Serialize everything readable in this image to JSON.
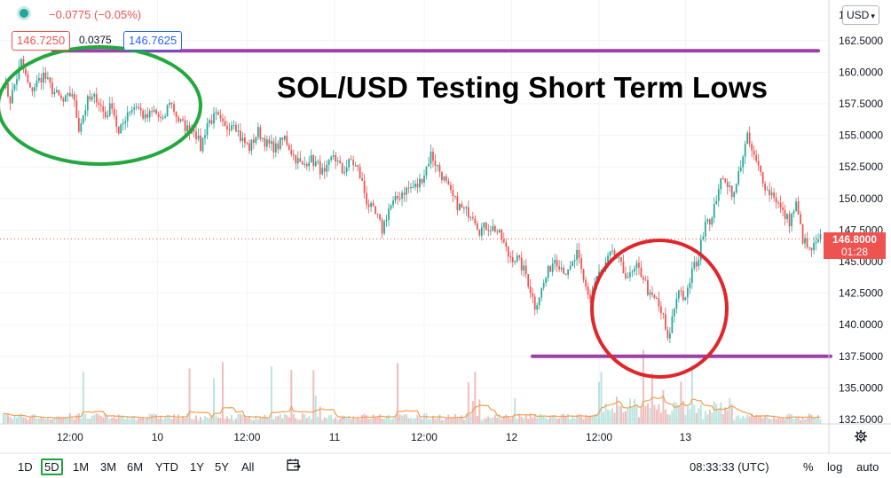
{
  "header": {
    "change": "−0.0775 (−0.05%)",
    "bid": "146.7250",
    "spread": "0.0375",
    "ask": "146.7625"
  },
  "headline": "SOL/USD Testing Short Term Lows",
  "price_scale": {
    "currency": "USD",
    "top_partial_label": "1",
    "current_price": "146.8000",
    "countdown": "01:28"
  },
  "bottom_toolbar": {
    "timeframes": [
      "1D",
      "5D",
      "1M",
      "3M",
      "6M",
      "YTD",
      "1Y",
      "5Y",
      "All"
    ],
    "active_timeframe": "5D",
    "clock": "08:33:33 (UTC)",
    "percent": "%",
    "log": "log",
    "auto": "auto"
  },
  "icons": {
    "settings": "gear-icon",
    "date-range": "calendar-range-icon",
    "status": "live-dot-icon"
  },
  "colors": {
    "up": "#26a69a",
    "down": "#ef5350",
    "volume": "#e8a2a0",
    "volume_ma": "#f0a050",
    "resistance_line": "#9c3fa8",
    "support_line": "#9c3fa8",
    "green_circle": "#22a83f",
    "red_circle": "#e0262b"
  },
  "chart_data": {
    "type": "candlestick",
    "title": "SOL/USD Testing Short Term Lows",
    "xlabel": "",
    "ylabel": "",
    "x_ticks": [
      "12:00",
      "10",
      "12:00",
      "11",
      "12:00",
      "12",
      "12:00",
      "13"
    ],
    "y_ticks": [
      "132.5000",
      "135.0000",
      "137.5000",
      "140.0000",
      "142.5000",
      "145.0000",
      "147.5000",
      "150.0000",
      "152.5000",
      "155.0000",
      "157.5000",
      "160.0000",
      "162.5000"
    ],
    "ylim": [
      132.5,
      164.0
    ],
    "path": [
      [
        0,
        159.2
      ],
      [
        3,
        157.8
      ],
      [
        8,
        160.8
      ],
      [
        12,
        158.5
      ],
      [
        18,
        159.8
      ],
      [
        22,
        158.6
      ],
      [
        27,
        157.6
      ],
      [
        31,
        158.4
      ],
      [
        34,
        155.6
      ],
      [
        38,
        157.7
      ],
      [
        42,
        158.0
      ],
      [
        46,
        156.5
      ],
      [
        49,
        157.5
      ],
      [
        52,
        155.0
      ],
      [
        56,
        156.9
      ],
      [
        60,
        157.4
      ],
      [
        64,
        156.3
      ],
      [
        68,
        156.9
      ],
      [
        72,
        156.0
      ],
      [
        75,
        157.8
      ],
      [
        79,
        156.2
      ],
      [
        83,
        155.5
      ],
      [
        86,
        155.6
      ],
      [
        89,
        154.0
      ],
      [
        92,
        156.0
      ],
      [
        96,
        156.5
      ],
      [
        100,
        155.5
      ],
      [
        104,
        156.2
      ],
      [
        107,
        154.8
      ],
      [
        111,
        154.0
      ],
      [
        115,
        155.3
      ],
      [
        119,
        154.3
      ],
      [
        123,
        154.0
      ],
      [
        127,
        154.8
      ],
      [
        131,
        153.4
      ],
      [
        135,
        152.5
      ],
      [
        138,
        153.2
      ],
      [
        142,
        152.6
      ],
      [
        145,
        151.8
      ],
      [
        149,
        153.5
      ],
      [
        153,
        152.1
      ],
      [
        157,
        153.0
      ],
      [
        160,
        152.3
      ],
      [
        162,
        151.2
      ],
      [
        164,
        149.8
      ],
      [
        166,
        149.2
      ],
      [
        169,
        148.4
      ],
      [
        171,
        147.5
      ],
      [
        174,
        149.2
      ],
      [
        177,
        149.8
      ],
      [
        180,
        150.5
      ],
      [
        183,
        150.8
      ],
      [
        187,
        151.0
      ],
      [
        190,
        152.0
      ],
      [
        193,
        153.5
      ],
      [
        196,
        152.5
      ],
      [
        199,
        151.5
      ],
      [
        202,
        150.3
      ],
      [
        205,
        149.5
      ],
      [
        208,
        149.0
      ],
      [
        212,
        148.8
      ],
      [
        215,
        147.5
      ],
      [
        218,
        147.8
      ],
      [
        222,
        147.6
      ],
      [
        225,
        146.8
      ],
      [
        228,
        145.5
      ],
      [
        232,
        145.2
      ],
      [
        236,
        144.0
      ],
      [
        240,
        141.5
      ],
      [
        243,
        142.8
      ],
      [
        246,
        144.2
      ],
      [
        249,
        145.3
      ],
      [
        252,
        144.6
      ],
      [
        255,
        144.0
      ],
      [
        259,
        145.6
      ],
      [
        262,
        143.4
      ],
      [
        265,
        142.1
      ],
      [
        268,
        143.8
      ],
      [
        271,
        144.4
      ],
      [
        274,
        145.5
      ],
      [
        277,
        145.3
      ],
      [
        280,
        144.2
      ],
      [
        283,
        143.8
      ],
      [
        286,
        144.5
      ],
      [
        289,
        143.8
      ],
      [
        292,
        142.2
      ],
      [
        295,
        141.9
      ],
      [
        298,
        140.5
      ],
      [
        300,
        138.6
      ],
      [
        302,
        140.5
      ],
      [
        305,
        143.0
      ],
      [
        308,
        141.8
      ],
      [
        311,
        144.3
      ],
      [
        314,
        145.3
      ],
      [
        317,
        148.5
      ],
      [
        320,
        148.3
      ],
      [
        323,
        151.0
      ],
      [
        326,
        151.6
      ],
      [
        330,
        150.2
      ],
      [
        333,
        152.8
      ],
      [
        336,
        154.8
      ],
      [
        339,
        153.2
      ],
      [
        342,
        152.0
      ],
      [
        345,
        150.6
      ],
      [
        348,
        150.3
      ],
      [
        352,
        148.8
      ],
      [
        355,
        148.2
      ],
      [
        358,
        149.5
      ],
      [
        361,
        146.8
      ],
      [
        364,
        145.8
      ],
      [
        367,
        146.3
      ],
      [
        369,
        146.8
      ]
    ],
    "annotations": [
      {
        "type": "horizontal-line",
        "price": 161.7,
        "label": "resistance"
      },
      {
        "type": "horizontal-line",
        "price": 137.5,
        "label": "support"
      },
      {
        "type": "ellipse",
        "color": "green"
      },
      {
        "type": "ellipse",
        "color": "red"
      }
    ]
  }
}
